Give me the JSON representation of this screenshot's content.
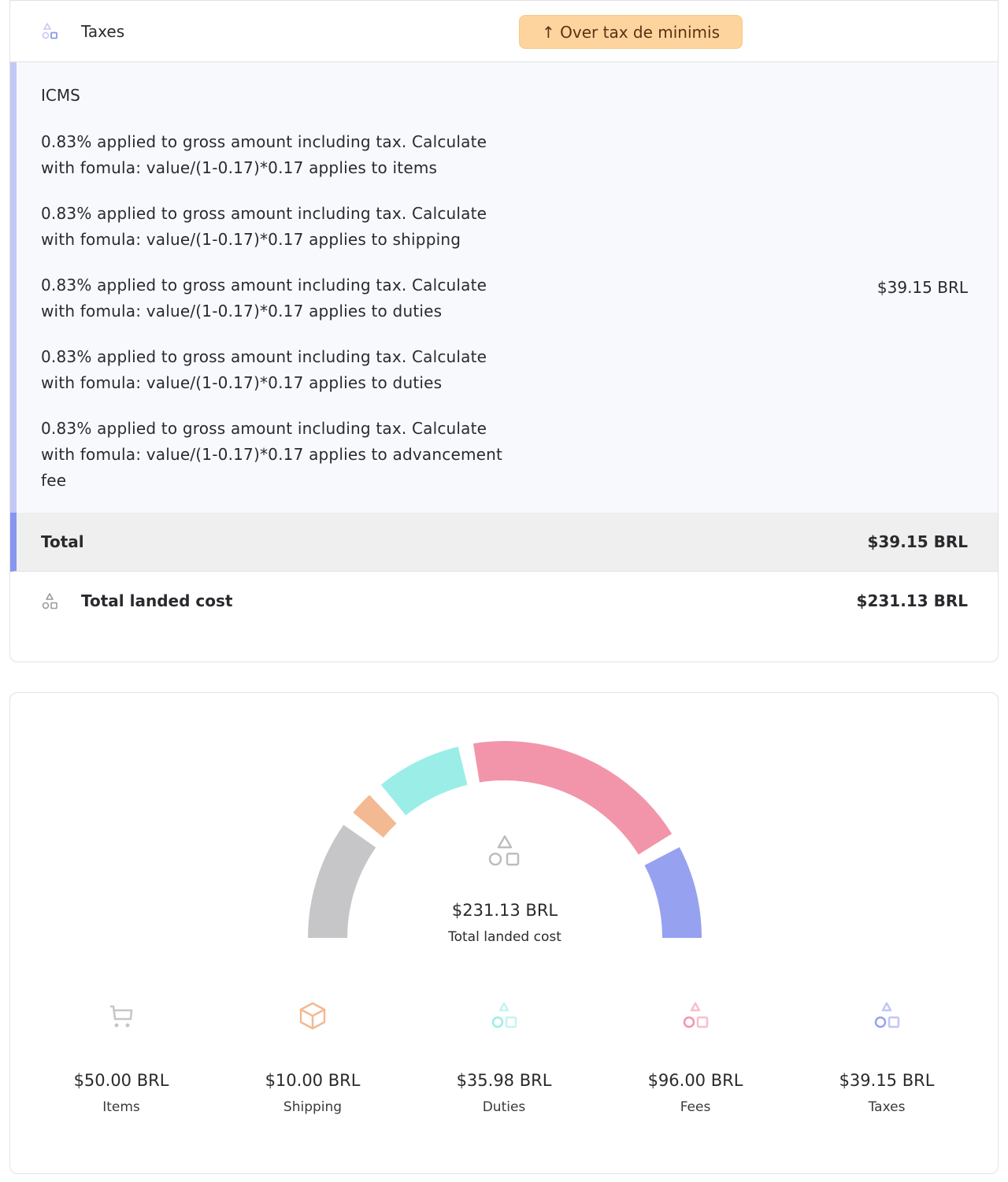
{
  "taxes_card": {
    "title": "Taxes",
    "title_icon": "shapes-icon",
    "badge": {
      "icon": "arrow-up-icon",
      "label": "Over tax de minimis",
      "color": "#fdd49d"
    },
    "tax_name": "ICMS",
    "lines": [
      "0.83% applied to gross amount including tax. Calculate with fomula: value/(1-0.17)*0.17 applies to items",
      "0.83% applied to gross amount including tax. Calculate with fomula: value/(1-0.17)*0.17 applies to shipping",
      "0.83% applied to gross amount including tax. Calculate with fomula: value/(1-0.17)*0.17 applies to duties",
      "0.83% applied to gross amount including tax. Calculate with fomula: value/(1-0.17)*0.17 applies to duties",
      "0.83% applied to gross amount including tax. Calculate with fomula: value/(1-0.17)*0.17 applies to advancement fee"
    ],
    "tax_amount": "$39.15 BRL",
    "total_label": "Total",
    "total_value": "$39.15 BRL",
    "landed_label": "Total landed cost",
    "landed_value": "$231.13 BRL"
  },
  "chart_data": {
    "type": "gauge",
    "center_value": "$231.13 BRL",
    "center_label": "Total landed cost",
    "segments": [
      {
        "label": "Items",
        "amount": "$50.00 BRL",
        "value": 50.0,
        "color": "#c6c6c8",
        "icon": "cart-icon"
      },
      {
        "label": "Shipping",
        "amount": "$10.00 BRL",
        "value": 10.0,
        "color": "#f2b993",
        "icon": "box-icon"
      },
      {
        "label": "Duties",
        "amount": "$35.98 BRL",
        "value": 35.98,
        "color": "#9beee8",
        "icon": "shapes-icon"
      },
      {
        "label": "Fees",
        "amount": "$96.00 BRL",
        "value": 96.0,
        "color": "#f295ab",
        "icon": "shapes-icon"
      },
      {
        "label": "Taxes",
        "amount": "$39.15 BRL",
        "value": 39.15,
        "color": "#96a2ef",
        "icon": "shapes-icon"
      }
    ]
  }
}
